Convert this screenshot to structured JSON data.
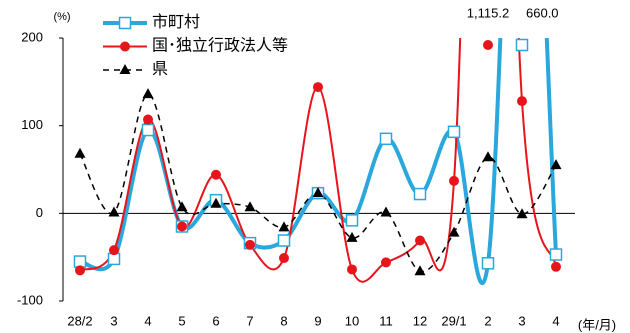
{
  "chart_data": {
    "type": "line",
    "y_unit_label": "(%)",
    "x_unit_label": "(年/月)",
    "categories": [
      "28/2",
      "3",
      "4",
      "5",
      "6",
      "7",
      "8",
      "9",
      "10",
      "11",
      "12",
      "29/1",
      "2",
      "3",
      "4"
    ],
    "series": [
      {
        "name": "市町村",
        "color": "#2aa7dc",
        "marker": "square",
        "dash": false,
        "values": [
          -55,
          -52,
          95,
          -15,
          15,
          -34,
          -31,
          23,
          -8,
          85,
          22,
          93,
          -57,
          660.0,
          -47
        ],
        "value_labels": [
          null,
          null,
          null,
          null,
          null,
          null,
          null,
          null,
          null,
          null,
          null,
          null,
          null,
          "660.0",
          null
        ]
      },
      {
        "name": "国･独立行政法人等",
        "color": "#e8141b",
        "marker": "circle",
        "dash": false,
        "values": [
          -65,
          -42,
          107,
          -15,
          44,
          -36,
          -51,
          144,
          -64,
          -56,
          -31,
          37,
          1115.2,
          128,
          -61
        ],
        "value_labels": [
          null,
          null,
          null,
          null,
          null,
          null,
          null,
          null,
          null,
          null,
          null,
          null,
          "1,115.2",
          null,
          null
        ]
      },
      {
        "name": "県",
        "color": "#000000",
        "marker": "triangle",
        "dash": true,
        "values": [
          68,
          1,
          136,
          7,
          11,
          7,
          -16,
          23,
          -28,
          1,
          -66,
          -22,
          64,
          -1,
          55
        ]
      }
    ],
    "ylim": [
      -100,
      200
    ],
    "yticks": [
      -100,
      0,
      100,
      200
    ],
    "grid": false
  }
}
